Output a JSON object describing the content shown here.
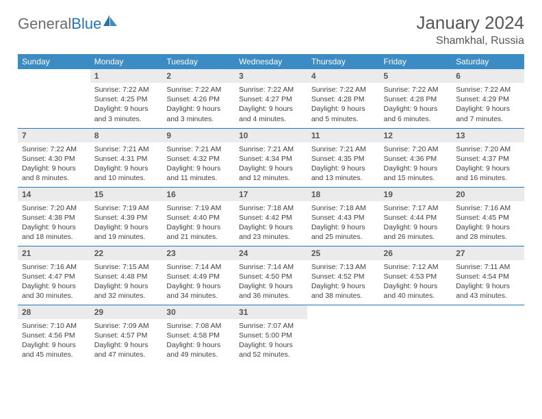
{
  "logo": {
    "text1": "General",
    "text2": "Blue"
  },
  "title": "January 2024",
  "location": "Shamkhal, Russia",
  "colors": {
    "header_bg": "#3b8bc4",
    "header_text": "#ffffff",
    "daynum_bg": "#ebebeb",
    "rule": "#2176b8",
    "logo_grey": "#6b6b6b",
    "logo_blue": "#2176b8",
    "body_text": "#404040"
  },
  "weekdays": [
    "Sunday",
    "Monday",
    "Tuesday",
    "Wednesday",
    "Thursday",
    "Friday",
    "Saturday"
  ],
  "first_weekday_index": 1,
  "days": [
    {
      "n": 1,
      "sunrise": "7:22 AM",
      "sunset": "4:25 PM",
      "daylight": "9 hours and 3 minutes."
    },
    {
      "n": 2,
      "sunrise": "7:22 AM",
      "sunset": "4:26 PM",
      "daylight": "9 hours and 3 minutes."
    },
    {
      "n": 3,
      "sunrise": "7:22 AM",
      "sunset": "4:27 PM",
      "daylight": "9 hours and 4 minutes."
    },
    {
      "n": 4,
      "sunrise": "7:22 AM",
      "sunset": "4:28 PM",
      "daylight": "9 hours and 5 minutes."
    },
    {
      "n": 5,
      "sunrise": "7:22 AM",
      "sunset": "4:28 PM",
      "daylight": "9 hours and 6 minutes."
    },
    {
      "n": 6,
      "sunrise": "7:22 AM",
      "sunset": "4:29 PM",
      "daylight": "9 hours and 7 minutes."
    },
    {
      "n": 7,
      "sunrise": "7:22 AM",
      "sunset": "4:30 PM",
      "daylight": "9 hours and 8 minutes."
    },
    {
      "n": 8,
      "sunrise": "7:21 AM",
      "sunset": "4:31 PM",
      "daylight": "9 hours and 10 minutes."
    },
    {
      "n": 9,
      "sunrise": "7:21 AM",
      "sunset": "4:32 PM",
      "daylight": "9 hours and 11 minutes."
    },
    {
      "n": 10,
      "sunrise": "7:21 AM",
      "sunset": "4:34 PM",
      "daylight": "9 hours and 12 minutes."
    },
    {
      "n": 11,
      "sunrise": "7:21 AM",
      "sunset": "4:35 PM",
      "daylight": "9 hours and 13 minutes."
    },
    {
      "n": 12,
      "sunrise": "7:20 AM",
      "sunset": "4:36 PM",
      "daylight": "9 hours and 15 minutes."
    },
    {
      "n": 13,
      "sunrise": "7:20 AM",
      "sunset": "4:37 PM",
      "daylight": "9 hours and 16 minutes."
    },
    {
      "n": 14,
      "sunrise": "7:20 AM",
      "sunset": "4:38 PM",
      "daylight": "9 hours and 18 minutes."
    },
    {
      "n": 15,
      "sunrise": "7:19 AM",
      "sunset": "4:39 PM",
      "daylight": "9 hours and 19 minutes."
    },
    {
      "n": 16,
      "sunrise": "7:19 AM",
      "sunset": "4:40 PM",
      "daylight": "9 hours and 21 minutes."
    },
    {
      "n": 17,
      "sunrise": "7:18 AM",
      "sunset": "4:42 PM",
      "daylight": "9 hours and 23 minutes."
    },
    {
      "n": 18,
      "sunrise": "7:18 AM",
      "sunset": "4:43 PM",
      "daylight": "9 hours and 25 minutes."
    },
    {
      "n": 19,
      "sunrise": "7:17 AM",
      "sunset": "4:44 PM",
      "daylight": "9 hours and 26 minutes."
    },
    {
      "n": 20,
      "sunrise": "7:16 AM",
      "sunset": "4:45 PM",
      "daylight": "9 hours and 28 minutes."
    },
    {
      "n": 21,
      "sunrise": "7:16 AM",
      "sunset": "4:47 PM",
      "daylight": "9 hours and 30 minutes."
    },
    {
      "n": 22,
      "sunrise": "7:15 AM",
      "sunset": "4:48 PM",
      "daylight": "9 hours and 32 minutes."
    },
    {
      "n": 23,
      "sunrise": "7:14 AM",
      "sunset": "4:49 PM",
      "daylight": "9 hours and 34 minutes."
    },
    {
      "n": 24,
      "sunrise": "7:14 AM",
      "sunset": "4:50 PM",
      "daylight": "9 hours and 36 minutes."
    },
    {
      "n": 25,
      "sunrise": "7:13 AM",
      "sunset": "4:52 PM",
      "daylight": "9 hours and 38 minutes."
    },
    {
      "n": 26,
      "sunrise": "7:12 AM",
      "sunset": "4:53 PM",
      "daylight": "9 hours and 40 minutes."
    },
    {
      "n": 27,
      "sunrise": "7:11 AM",
      "sunset": "4:54 PM",
      "daylight": "9 hours and 43 minutes."
    },
    {
      "n": 28,
      "sunrise": "7:10 AM",
      "sunset": "4:56 PM",
      "daylight": "9 hours and 45 minutes."
    },
    {
      "n": 29,
      "sunrise": "7:09 AM",
      "sunset": "4:57 PM",
      "daylight": "9 hours and 47 minutes."
    },
    {
      "n": 30,
      "sunrise": "7:08 AM",
      "sunset": "4:58 PM",
      "daylight": "9 hours and 49 minutes."
    },
    {
      "n": 31,
      "sunrise": "7:07 AM",
      "sunset": "5:00 PM",
      "daylight": "9 hours and 52 minutes."
    }
  ],
  "labels": {
    "sunrise": "Sunrise:",
    "sunset": "Sunset:",
    "daylight": "Daylight:"
  }
}
